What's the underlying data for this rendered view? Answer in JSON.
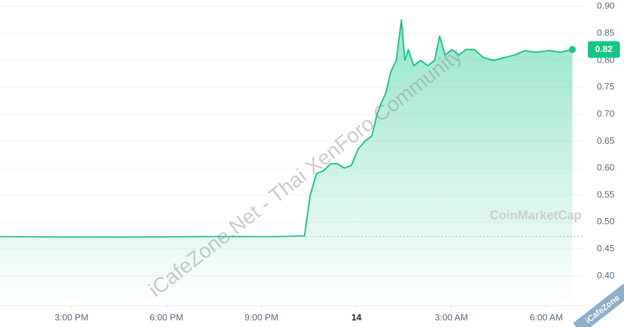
{
  "chart_data": {
    "type": "area",
    "x": [
      12.74,
      14.93,
      17.13,
      19.33,
      21.53,
      22.36,
      22.54,
      22.74,
      22.96,
      23.18,
      23.4,
      23.62,
      23.84,
      24.05,
      24.27,
      24.49,
      24.65,
      24.78,
      24.93,
      25.09,
      25.26,
      25.42,
      25.53,
      25.64,
      25.81,
      26.03,
      26.25,
      26.47,
      26.63,
      26.8,
      27.02,
      27.24,
      27.46,
      27.73,
      28.01,
      28.34,
      28.67,
      29.0,
      29.33,
      29.66,
      30.1,
      30.43,
      30.82
    ],
    "series": [
      {
        "color": "#16c784",
        "values": [
          0.473,
          0.472,
          0.472,
          0.473,
          0.473,
          0.474,
          0.55,
          0.59,
          0.595,
          0.608,
          0.608,
          0.6,
          0.605,
          0.635,
          0.65,
          0.66,
          0.7,
          0.72,
          0.74,
          0.78,
          0.8,
          0.875,
          0.8,
          0.82,
          0.79,
          0.8,
          0.79,
          0.8,
          0.845,
          0.81,
          0.82,
          0.81,
          0.82,
          0.82,
          0.805,
          0.8,
          0.805,
          0.81,
          0.818,
          0.815,
          0.818,
          0.815,
          0.82
        ]
      }
    ],
    "last_value": 0.82,
    "reference_value": 0.473,
    "xlim": [
      12.74,
      31.2
    ],
    "xticks": [
      {
        "value": 15,
        "label": "3:00 PM"
      },
      {
        "value": 18,
        "label": "6:00 PM"
      },
      {
        "value": 21,
        "label": "9:00 PM"
      },
      {
        "value": 24,
        "label": "14"
      },
      {
        "value": 27,
        "label": "3:00 AM"
      },
      {
        "value": 30,
        "label": "6:00 AM"
      }
    ],
    "ylim": [
      0.345,
      0.912
    ],
    "yticks": [
      {
        "value": 0.4,
        "label": "0.40"
      },
      0.45,
      {
        "value": 0.5,
        "label": "0.50"
      },
      0.55,
      {
        "value": 0.6,
        "label": "0.60"
      },
      0.65,
      {
        "value": 0.7,
        "label": "0.70"
      },
      0.75,
      {
        "value": 0.8,
        "label": "0.80"
      },
      0.85,
      {
        "value": 0.9,
        "label": "0.90"
      }
    ],
    "grid": true,
    "brand": "CoinMarketCap",
    "watermarks": [
      "iCafeZone.Net - Thai XenForo Community",
      "iCafeZone"
    ]
  }
}
